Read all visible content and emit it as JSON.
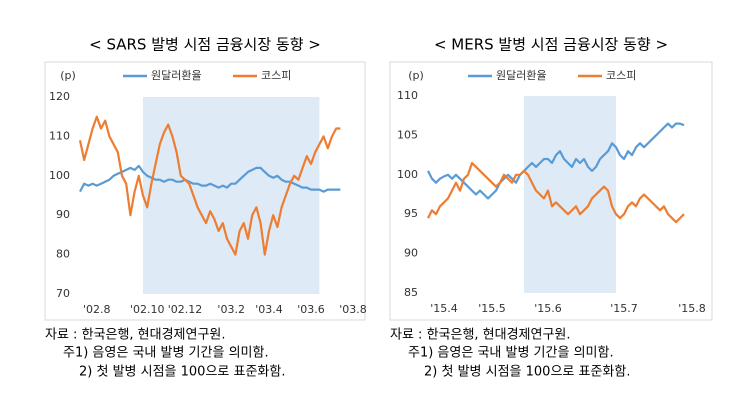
{
  "chart_data": [
    {
      "type": "line",
      "title": "< SARS 발병 시점 금융시장 동향 >",
      "ylabel": "(p)",
      "categories": [
        null,
        null,
        null,
        null,
        "'02.8",
        null,
        null,
        null,
        null,
        null,
        null,
        null,
        null,
        null,
        null,
        null,
        "'02.10",
        null,
        null,
        null,
        null,
        null,
        null,
        null,
        null,
        "'02.12",
        null,
        null,
        null,
        null,
        null,
        null,
        null,
        null,
        null,
        null,
        "'03.2",
        null,
        null,
        null,
        null,
        null,
        null,
        null,
        null,
        "'03.4",
        null,
        null,
        null,
        null,
        null,
        null,
        null,
        null,
        null,
        "'03.6",
        null,
        null,
        null,
        null,
        null,
        null,
        null,
        null,
        null,
        "'03.8",
        null
      ],
      "series": [
        {
          "name": "원달러환율",
          "color": "#5b9bd5",
          "values": [
            96,
            98,
            97.5,
            98,
            97.5,
            98,
            98.5,
            99,
            100,
            100.5,
            101,
            101.5,
            102,
            101.5,
            102.5,
            101,
            100,
            99.5,
            99,
            99,
            98.5,
            99,
            99,
            98.5,
            98.5,
            99,
            98.5,
            98,
            98,
            97.5,
            97.5,
            98,
            97.5,
            97,
            97.5,
            97,
            98,
            98,
            99,
            100,
            101,
            101.5,
            102,
            102,
            101,
            100,
            99.5,
            100,
            99,
            98.5,
            98.5,
            98,
            97.5,
            97,
            97,
            96.5,
            96.5,
            96.5,
            96,
            96.5,
            96.5,
            96.5,
            96.5,
            null,
            null,
            null,
            null
          ]
        },
        {
          "name": "코스피",
          "color": "#ed7d31",
          "values": [
            109,
            104,
            108,
            112,
            115,
            112,
            114,
            110,
            108,
            106,
            100,
            98,
            90,
            96,
            100,
            95,
            92,
            98,
            103,
            108,
            111,
            113,
            110,
            106,
            100,
            99,
            98,
            95,
            92,
            90,
            88,
            91,
            89,
            86,
            88,
            84,
            82,
            80,
            86,
            88,
            84,
            90,
            92,
            88,
            80,
            86,
            90,
            87,
            92,
            95,
            98,
            100,
            99,
            102,
            105,
            103,
            106,
            108,
            110,
            107,
            110,
            112,
            112,
            null,
            null,
            null,
            null
          ]
        }
      ],
      "ylim": [
        70,
        120
      ],
      "yticks": [
        70,
        80,
        90,
        100,
        110,
        120
      ],
      "shade": [
        15,
        57
      ],
      "notes": [
        "자료 : 한국은행, 현대경제연구원.",
        "주1) 음영은 국내 발병 기간을 의미함.",
        "2) 첫 발병 시점을 100으로 표준화함."
      ]
    },
    {
      "type": "line",
      "title": "< MERS 발병 시점 금융시장 동향 >",
      "ylabel": "(p)",
      "categories": [
        null,
        null,
        null,
        null,
        "'15.4",
        null,
        null,
        null,
        null,
        null,
        null,
        null,
        null,
        null,
        null,
        null,
        "'15.5",
        null,
        null,
        null,
        null,
        null,
        null,
        null,
        null,
        null,
        null,
        null,
        null,
        null,
        "'15.6",
        null,
        null,
        null,
        null,
        null,
        null,
        null,
        null,
        null,
        null,
        null,
        null,
        null,
        null,
        null,
        null,
        null,
        null,
        "'15.7",
        null,
        null,
        null,
        null,
        null,
        null,
        null,
        null,
        null,
        null,
        null,
        null,
        null,
        null,
        null,
        null,
        "'15.8"
      ],
      "series": [
        {
          "name": "원달러환율",
          "color": "#5b9bd5",
          "values": [
            100.5,
            99.5,
            99,
            99.5,
            99.8,
            100,
            99.5,
            100,
            99.5,
            99,
            98.5,
            98,
            97.5,
            98,
            97.5,
            97,
            97.5,
            98,
            99,
            99.5,
            100,
            99.5,
            99,
            100,
            100.5,
            101,
            101.5,
            101,
            101.5,
            102,
            102,
            101.5,
            102.5,
            103,
            102,
            101.5,
            101,
            102,
            101.5,
            102,
            101,
            100.5,
            101,
            102,
            102.5,
            103,
            104,
            103.5,
            102.5,
            102,
            103,
            102.5,
            103.5,
            104,
            103.5,
            104,
            104.5,
            105,
            105.5,
            106,
            106.5,
            106,
            106.5,
            106.5,
            106.3,
            null,
            null
          ]
        },
        {
          "name": "코스피",
          "color": "#ed7d31",
          "values": [
            94.5,
            95.5,
            95,
            96,
            96.5,
            97,
            98,
            99,
            98,
            99.5,
            100,
            101.5,
            101,
            100.5,
            100,
            99.5,
            99,
            98.5,
            99,
            100,
            99.5,
            99,
            100,
            100,
            100.5,
            100,
            99,
            98,
            97.5,
            97,
            98,
            96,
            96.5,
            96,
            95.5,
            95,
            95.5,
            96,
            95,
            95.5,
            96,
            97,
            97.5,
            98,
            98.5,
            98,
            96,
            95,
            94.5,
            95,
            96,
            96.5,
            96,
            97,
            97.5,
            97,
            96.5,
            96,
            95.5,
            96,
            95,
            94.5,
            94,
            94.5,
            95,
            null,
            null
          ]
        }
      ],
      "ylim": [
        85,
        110
      ],
      "yticks": [
        85,
        90,
        95,
        100,
        105,
        110
      ],
      "shade": [
        24,
        47
      ],
      "notes": [
        "자료 : 한국은행, 현대경제연구원.",
        "주1) 음영은 국내 발병 기간을 의미함.",
        "2) 첫 발병 시점을 100으로 표준화함."
      ]
    }
  ]
}
